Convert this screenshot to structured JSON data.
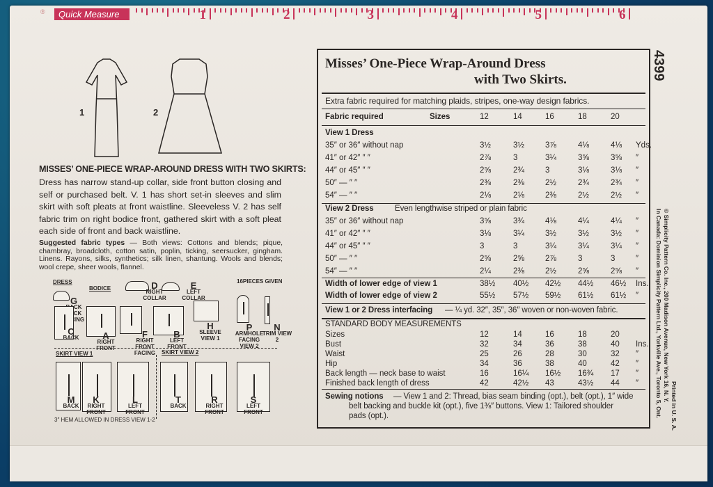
{
  "ruler": {
    "label": "Quick Measure",
    "numbers": [
      "1",
      "2",
      "3",
      "4",
      "5",
      "6"
    ],
    "color": "#c83359"
  },
  "pattern_number": "4399",
  "title": {
    "line1": "Misses’ One-Piece Wrap-Around Dress",
    "line2": "with Two Skirts."
  },
  "extra_note": "Extra fabric required for matching plaids, stripes, one-way design fabrics.",
  "header": {
    "label": "Fabric required",
    "sizes_label": "Sizes",
    "sizes": [
      "12",
      "14",
      "16",
      "18",
      "20"
    ]
  },
  "view1": {
    "heading": "View 1   Dress",
    "rows": [
      {
        "label": "35″ or 36″ without nap",
        "values": [
          "3½",
          "3½",
          "3⅞",
          "4⅛",
          "4⅛"
        ],
        "unit": "Yds."
      },
      {
        "label": "41″ or 42″      ″      ″",
        "values": [
          "2⅞",
          "3",
          "3¼",
          "3⅝",
          "3⅝"
        ],
        "unit": "″"
      },
      {
        "label": "44″ or 45″      ″      ″",
        "values": [
          "2⅝",
          "2¾",
          "3",
          "3⅛",
          "3⅛"
        ],
        "unit": "″"
      },
      {
        "label": "50″    —      ″      ″",
        "values": [
          "2⅜",
          "2⅜",
          "2½",
          "2¾",
          "2¾"
        ],
        "unit": "″"
      },
      {
        "label": "54″    —      ″      ″",
        "values": [
          "2⅛",
          "2⅛",
          "2⅜",
          "2½",
          "2½"
        ],
        "unit": "″"
      }
    ]
  },
  "view2": {
    "heading": "View 2   Dress",
    "note": "Even lengthwise striped or plain fabric",
    "rows": [
      {
        "label": "35″ or 36″ without nap",
        "values": [
          "3⅝",
          "3¾",
          "4⅛",
          "4¼",
          "4¼"
        ],
        "unit": "″"
      },
      {
        "label": "41″ or 42″      ″      ″",
        "values": [
          "3⅛",
          "3¼",
          "3½",
          "3½",
          "3½"
        ],
        "unit": "″"
      },
      {
        "label": "44″ or 45″      ″      ″",
        "values": [
          "3",
          "3",
          "3¼",
          "3¼",
          "3¼"
        ],
        "unit": "″"
      },
      {
        "label": "50″    —      ″      ″",
        "values": [
          "2⅝",
          "2⅝",
          "2⅞",
          "3",
          "3"
        ],
        "unit": "″"
      },
      {
        "label": "54″    —      ″      ″",
        "values": [
          "2¼",
          "2⅜",
          "2½",
          "2⅝",
          "2⅝"
        ],
        "unit": "″"
      }
    ]
  },
  "widths": [
    {
      "label": "Width of lower edge of view 1",
      "values": [
        "38½",
        "40½",
        "42½",
        "44½",
        "46½"
      ],
      "unit": "Ins."
    },
    {
      "label": "Width of lower edge of view 2",
      "values": [
        "55½",
        "57½",
        "59½",
        "61½",
        "61½"
      ],
      "unit": "″"
    }
  ],
  "interfacing": {
    "label": "View 1 or 2 Dress interfacing",
    "text": "— ¼ yd. 32″, 35″, 36″ woven or non-woven fabric."
  },
  "measurements": {
    "heading": "STANDARD BODY MEASUREMENTS",
    "rows": [
      {
        "label": "Sizes",
        "values": [
          "12",
          "14",
          "16",
          "18",
          "20"
        ],
        "unit": ""
      },
      {
        "label": "Bust",
        "values": [
          "32",
          "34",
          "36",
          "38",
          "40"
        ],
        "unit": "Ins."
      },
      {
        "label": "Waist",
        "values": [
          "25",
          "26",
          "28",
          "30",
          "32"
        ],
        "unit": "″"
      },
      {
        "label": "Hip",
        "values": [
          "34",
          "36",
          "38",
          "40",
          "42"
        ],
        "unit": "″"
      },
      {
        "label": "Back length — neck base to waist",
        "values": [
          "16",
          "16¼",
          "16½",
          "16¾",
          "17"
        ],
        "unit": "″"
      },
      {
        "label": "Finished back length of dress",
        "values": [
          "42",
          "42½",
          "43",
          "43½",
          "44"
        ],
        "unit": "″"
      }
    ]
  },
  "notions": {
    "label": "Sewing notions",
    "line1": "— View 1 and 2: Thread, bias seam binding (opt.), belt (opt.), 1″ wide",
    "line2": "belt backing and buckle kit (opt.), five 1⅜″ buttons. View 1: Tailored shoulder",
    "line3": "pads (opt.)."
  },
  "side_text": {
    "line1": "© Simplicity Pattern Co. Inc., 200 Madison Avenue, New York 16, N. Y.",
    "line2": "In Canada: Dominion Simplicity Pattern Ltd., Yorkville Ave., Toronto 5, Ont.",
    "printed": "Printed in U. S. A."
  },
  "views": {
    "v1": "1",
    "v2": "2"
  },
  "description": {
    "heading": "MISSES’ ONE-PIECE WRAP-AROUND DRESS WITH TWO SKIRTS:",
    "body": "Dress has narrow stand-up collar, side front button closing and self or purchased belt. V. 1 has short set-in sleeves and slim skirt with soft pleats at front waistline. Sleeveless V. 2 has self fabric trim on right bodice front, gathered skirt with a soft pleat each side of front and back waistline.",
    "fabric_label": "Suggested fabric types",
    "fabric_text": "— Both views: Cottons and blends; pique, chambray, broadcloth, cotton satin, poplin, ticking, seersucker, gingham. Linens. Rayons, silks, synthetics; silk linen, shantung. Wools and blends; wool crepe, sheer wools, flannel."
  },
  "pieces": {
    "dress_label": "DRESS",
    "bodice_label": "BODICE",
    "count": "16PIECES GIVEN",
    "skirt1": "SKIRT  VIEW 1",
    "skirt2": "SKIRT  VIEW 2",
    "hem_note": "3″ HEM ALLOWED IN DRESS  VIEW 1-2",
    "items": [
      {
        "letter": "G",
        "name": "BACK NECK FACING"
      },
      {
        "letter": "D",
        "name": "RIGHT COLLAR"
      },
      {
        "letter": "E",
        "name": "LEFT COLLAR"
      },
      {
        "letter": "C",
        "name": "BACK"
      },
      {
        "letter": "A",
        "name": "RIGHT FRONT"
      },
      {
        "letter": "F",
        "name": "RIGHT FRONT FACING"
      },
      {
        "letter": "B",
        "name": "LEFT FRONT"
      },
      {
        "letter": "H",
        "name": "SLEEVE VIEW 1"
      },
      {
        "letter": "P",
        "name": "ARMHOLE FACING VIEW 2"
      },
      {
        "letter": "N",
        "name": "TRIM VIEW 2"
      },
      {
        "letter": "M",
        "name": "BACK"
      },
      {
        "letter": "K",
        "name": "RIGHT FRONT"
      },
      {
        "letter": "L",
        "name": "LEFT FRONT"
      },
      {
        "letter": "T",
        "name": "BACK"
      },
      {
        "letter": "R",
        "name": "RIGHT FRONT"
      },
      {
        "letter": "S",
        "name": "LEFT FRONT"
      }
    ]
  }
}
